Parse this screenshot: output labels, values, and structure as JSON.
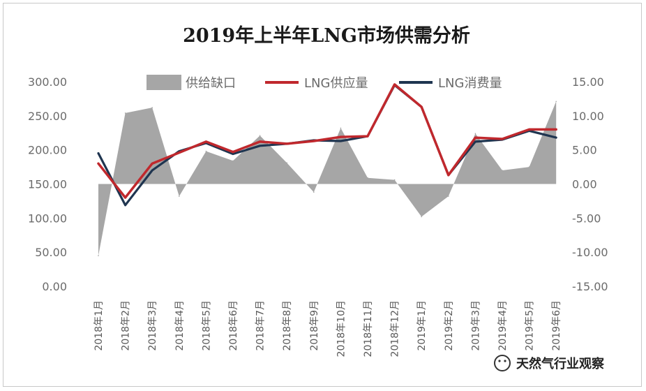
{
  "chart_data": {
    "type": "area",
    "title": "2019年上半年LNG市场供需分析",
    "categories": [
      "2018年1月",
      "2018年2月",
      "2018年3月",
      "2018年4月",
      "2018年5月",
      "2018年6月",
      "2018年7月",
      "2018年8月",
      "2018年9月",
      "2018年10月",
      "2018年11月",
      "2018年12月",
      "2019年1月",
      "2019年2月",
      "2019年3月",
      "2019年4月",
      "2019年5月",
      "2019年6月"
    ],
    "left_axis": {
      "min": 0,
      "max": 300,
      "ticks": [
        "0.00",
        "50.00",
        "100.00",
        "150.00",
        "200.00",
        "250.00",
        "300.00"
      ]
    },
    "right_axis": {
      "min": -15,
      "max": 15,
      "ticks": [
        "-15.00",
        "-10.00",
        "-5.00",
        "0.00",
        "5.00",
        "10.00",
        "15.00"
      ]
    },
    "legend": {
      "position": "top",
      "items": [
        {
          "label": "供给缺口",
          "color": "#a6a6a6",
          "kind": "area"
        },
        {
          "label": "LNG供应量",
          "color": "#c0282d",
          "kind": "line"
        },
        {
          "label": "LNG消费量",
          "color": "#1f3550",
          "kind": "line"
        }
      ]
    },
    "series": [
      {
        "name": "供给缺口",
        "axis": "right",
        "type": "area",
        "color": "#a6a6a6",
        "values": [
          -10.5,
          10.4,
          11.2,
          -1.8,
          4.8,
          3.4,
          7.1,
          3.1,
          -1.2,
          8.2,
          0.9,
          0.6,
          -4.8,
          -1.8,
          7.4,
          2.0,
          2.5,
          12.1
        ]
      },
      {
        "name": "LNG供应量",
        "axis": "left",
        "type": "line",
        "color": "#c0282d",
        "values": [
          180,
          130,
          180,
          196,
          212,
          197,
          212,
          209,
          213,
          219,
          220,
          296,
          263,
          163,
          218,
          216,
          230,
          230
        ]
      },
      {
        "name": "LNG消费量",
        "axis": "left",
        "type": "line",
        "color": "#1f3550",
        "values": [
          195,
          119,
          170,
          198,
          210,
          194,
          206,
          209,
          214,
          213,
          220,
          295,
          263,
          163,
          212,
          215,
          228,
          218
        ]
      }
    ]
  },
  "watermark": {
    "text": "天然气行业观察"
  }
}
